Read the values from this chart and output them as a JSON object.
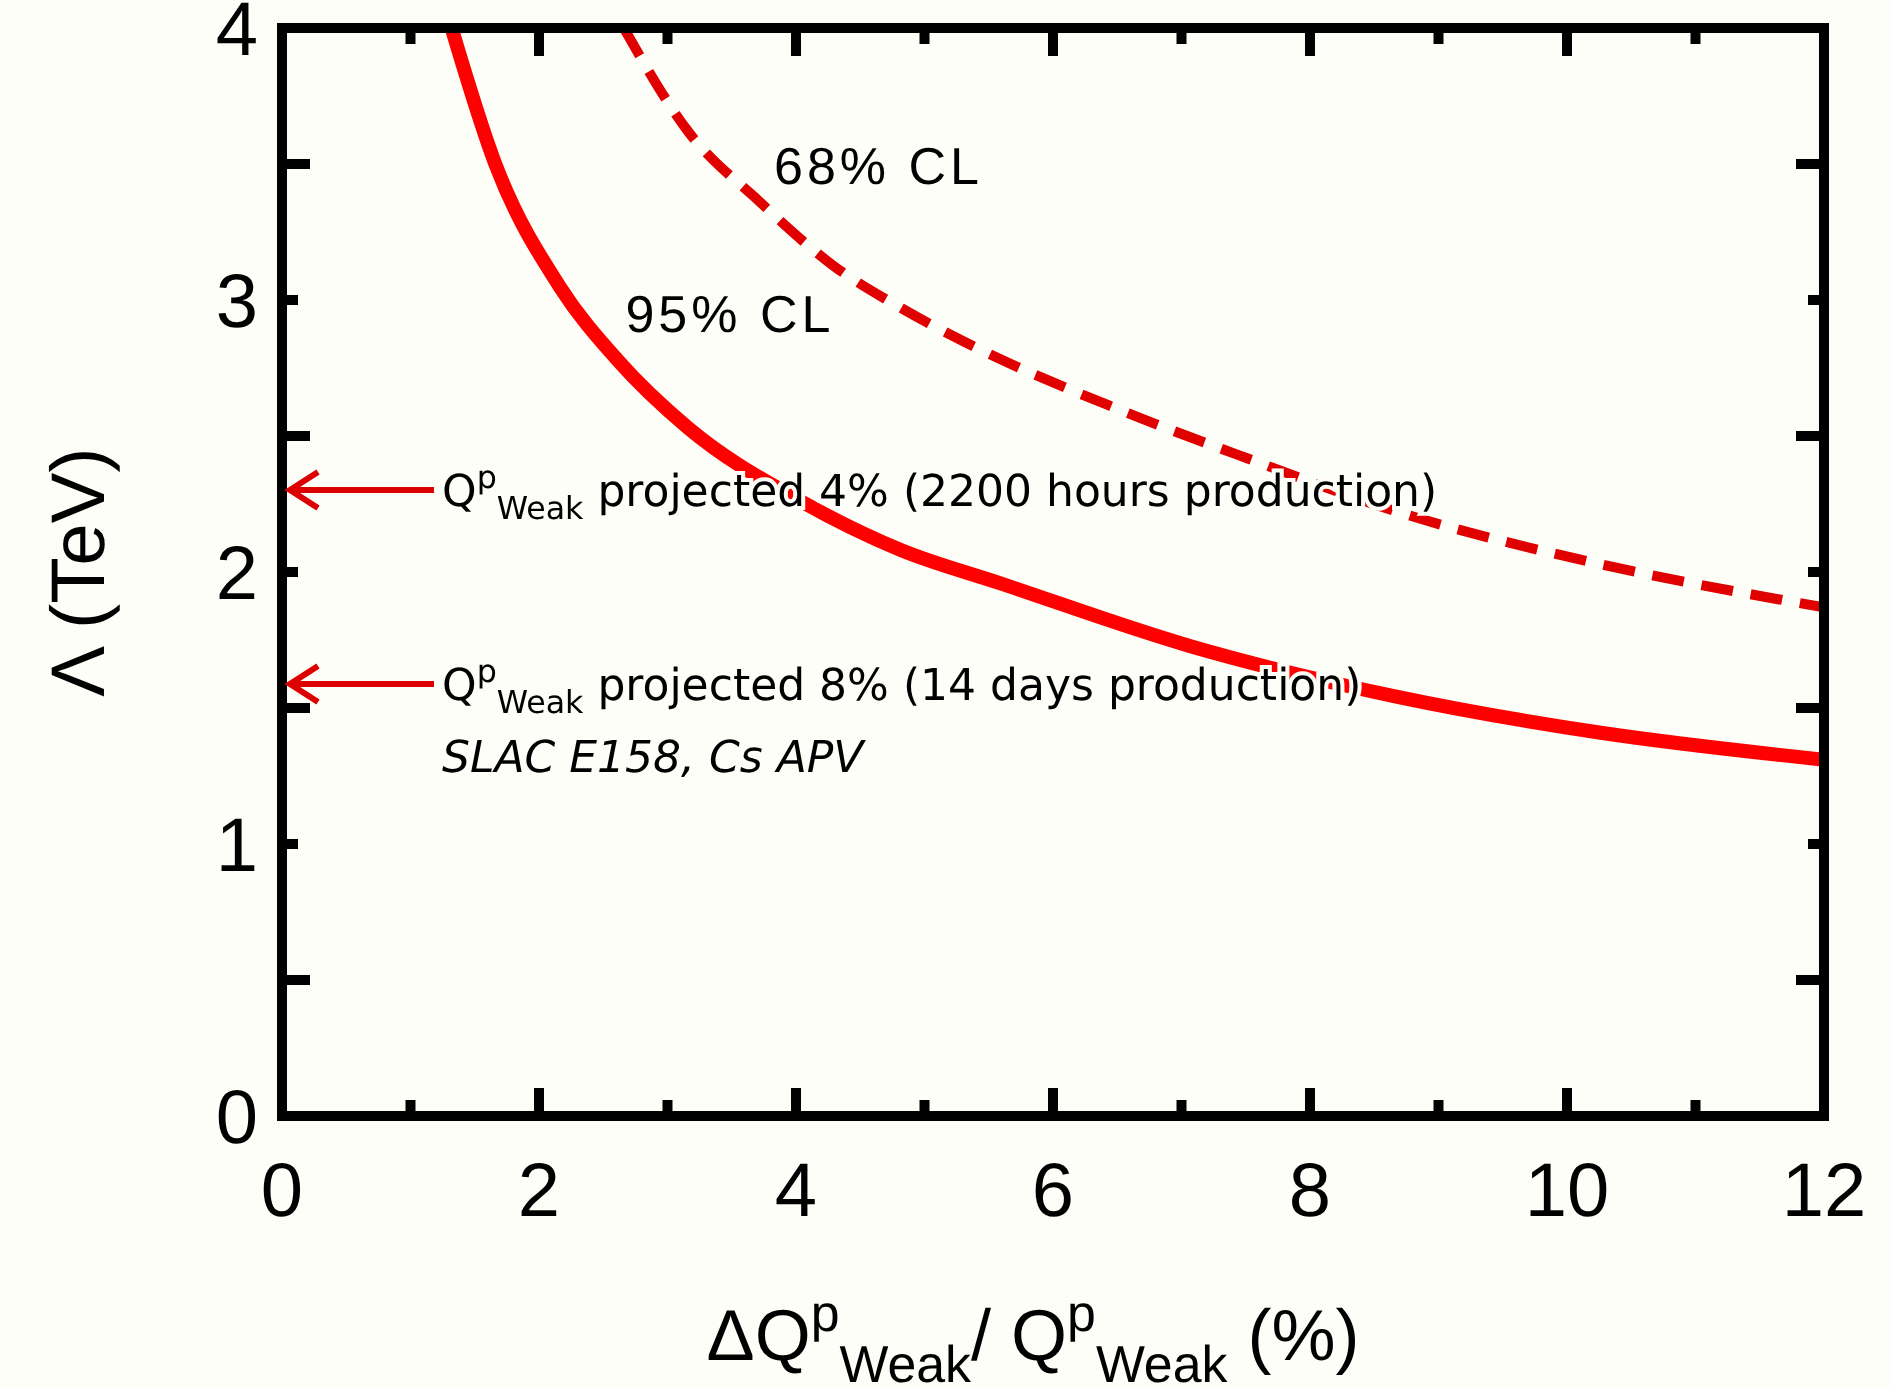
{
  "chart_data": {
    "type": "line",
    "xlabel": "ΔQ$^{p}$$_{Weak}$/ Q$^{p}$$_{Weak}$ (%)",
    "ylabel": "Λ  (TeV)",
    "xlim": [
      0,
      12
    ],
    "ylim": [
      0,
      4
    ],
    "xticks": [
      0,
      {
        "value": 1,
        "label": null
      },
      2,
      {
        "value": 3,
        "label": null
      },
      4,
      {
        "value": 5,
        "label": null
      },
      6,
      {
        "value": 7,
        "label": null
      },
      8,
      {
        "value": 9,
        "label": null
      },
      10,
      {
        "value": 11,
        "label": null
      },
      12
    ],
    "yticks": [
      0,
      {
        "value": 0.5,
        "label": null
      },
      1,
      {
        "value": 1.5,
        "label": null
      },
      2,
      {
        "value": 2.5,
        "label": null
      },
      3,
      {
        "value": 3.5,
        "label": null
      },
      4
    ],
    "grid": false,
    "legend": false,
    "marker": "none",
    "series": [
      {
        "name": "95% CL",
        "color": "#ff0000",
        "line_style": "solid",
        "x": [
          1.32,
          1.66,
          2.16,
          2.61,
          3.16,
          4.04,
          4.82,
          5.58,
          7.05,
          8.69,
          10.25,
          12
        ],
        "values": [
          4,
          3.5,
          3.05,
          2.78,
          2.53,
          2.26,
          2.08,
          1.96,
          1.73,
          1.54,
          1.41,
          1.31
        ]
      },
      {
        "name": "68% CL",
        "color": "#e00000",
        "line_style": "dashed",
        "x": [
          2.66,
          3.16,
          3.72,
          4.28,
          4.82,
          5.38,
          6.5,
          7.5,
          8.69,
          10.25,
          12
        ],
        "values": [
          4,
          3.62,
          3.36,
          3.13,
          2.97,
          2.83,
          2.6,
          2.42,
          2.22,
          2.03,
          1.87
        ]
      }
    ],
    "annotations": [
      "Q$^{p}$$_{Weak}$ projected 4% (2200 hours production)",
      "Q$^{p}$$_{Weak}$ projected 8% (14 days production)",
      "SLAC E158, Cs APV"
    ]
  }
}
